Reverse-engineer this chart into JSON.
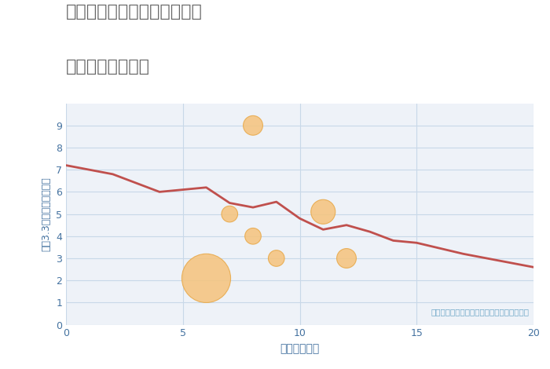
{
  "title_line1": "奈良県磯城郡三宅町上但馬の",
  "title_line2": "駅距離別土地価格",
  "xlabel": "駅距離（分）",
  "ylabel": "平（3.3㎡）単価（万円）",
  "background_color": "#ffffff",
  "plot_bg_color": "#eef2f8",
  "line_color": "#c0504d",
  "line_x": [
    0,
    2,
    4,
    5,
    6,
    7,
    8,
    9,
    10,
    11,
    12,
    13,
    14,
    15,
    17,
    20
  ],
  "line_y": [
    7.2,
    6.8,
    6.0,
    6.1,
    6.2,
    5.5,
    5.3,
    5.55,
    4.8,
    4.3,
    4.5,
    4.2,
    3.8,
    3.7,
    3.2,
    2.6
  ],
  "scatter_x": [
    6,
    7,
    8,
    8,
    9,
    11,
    12
  ],
  "scatter_y": [
    2.1,
    5.0,
    9.0,
    4.0,
    3.0,
    5.1,
    3.0
  ],
  "scatter_sizes": [
    2000,
    220,
    320,
    220,
    220,
    500,
    320
  ],
  "scatter_color": "#f5c47f",
  "scatter_edge_color": "#e8a94a",
  "annotation": "円の大きさは、取引のあった物件面積を示す",
  "annotation_color": "#6fa8c8",
  "xlim": [
    0,
    20
  ],
  "ylim": [
    0,
    10
  ],
  "xticks": [
    0,
    5,
    10,
    15,
    20
  ],
  "yticks": [
    0,
    1,
    2,
    3,
    4,
    5,
    6,
    7,
    8,
    9
  ],
  "grid_color": "#c8d8e8",
  "title_color": "#666666",
  "axis_label_color": "#4472a0",
  "tick_color": "#4472a0",
  "tick_fontsize": 9,
  "xlabel_fontsize": 10,
  "ylabel_fontsize": 9,
  "title_fontsize": 16
}
